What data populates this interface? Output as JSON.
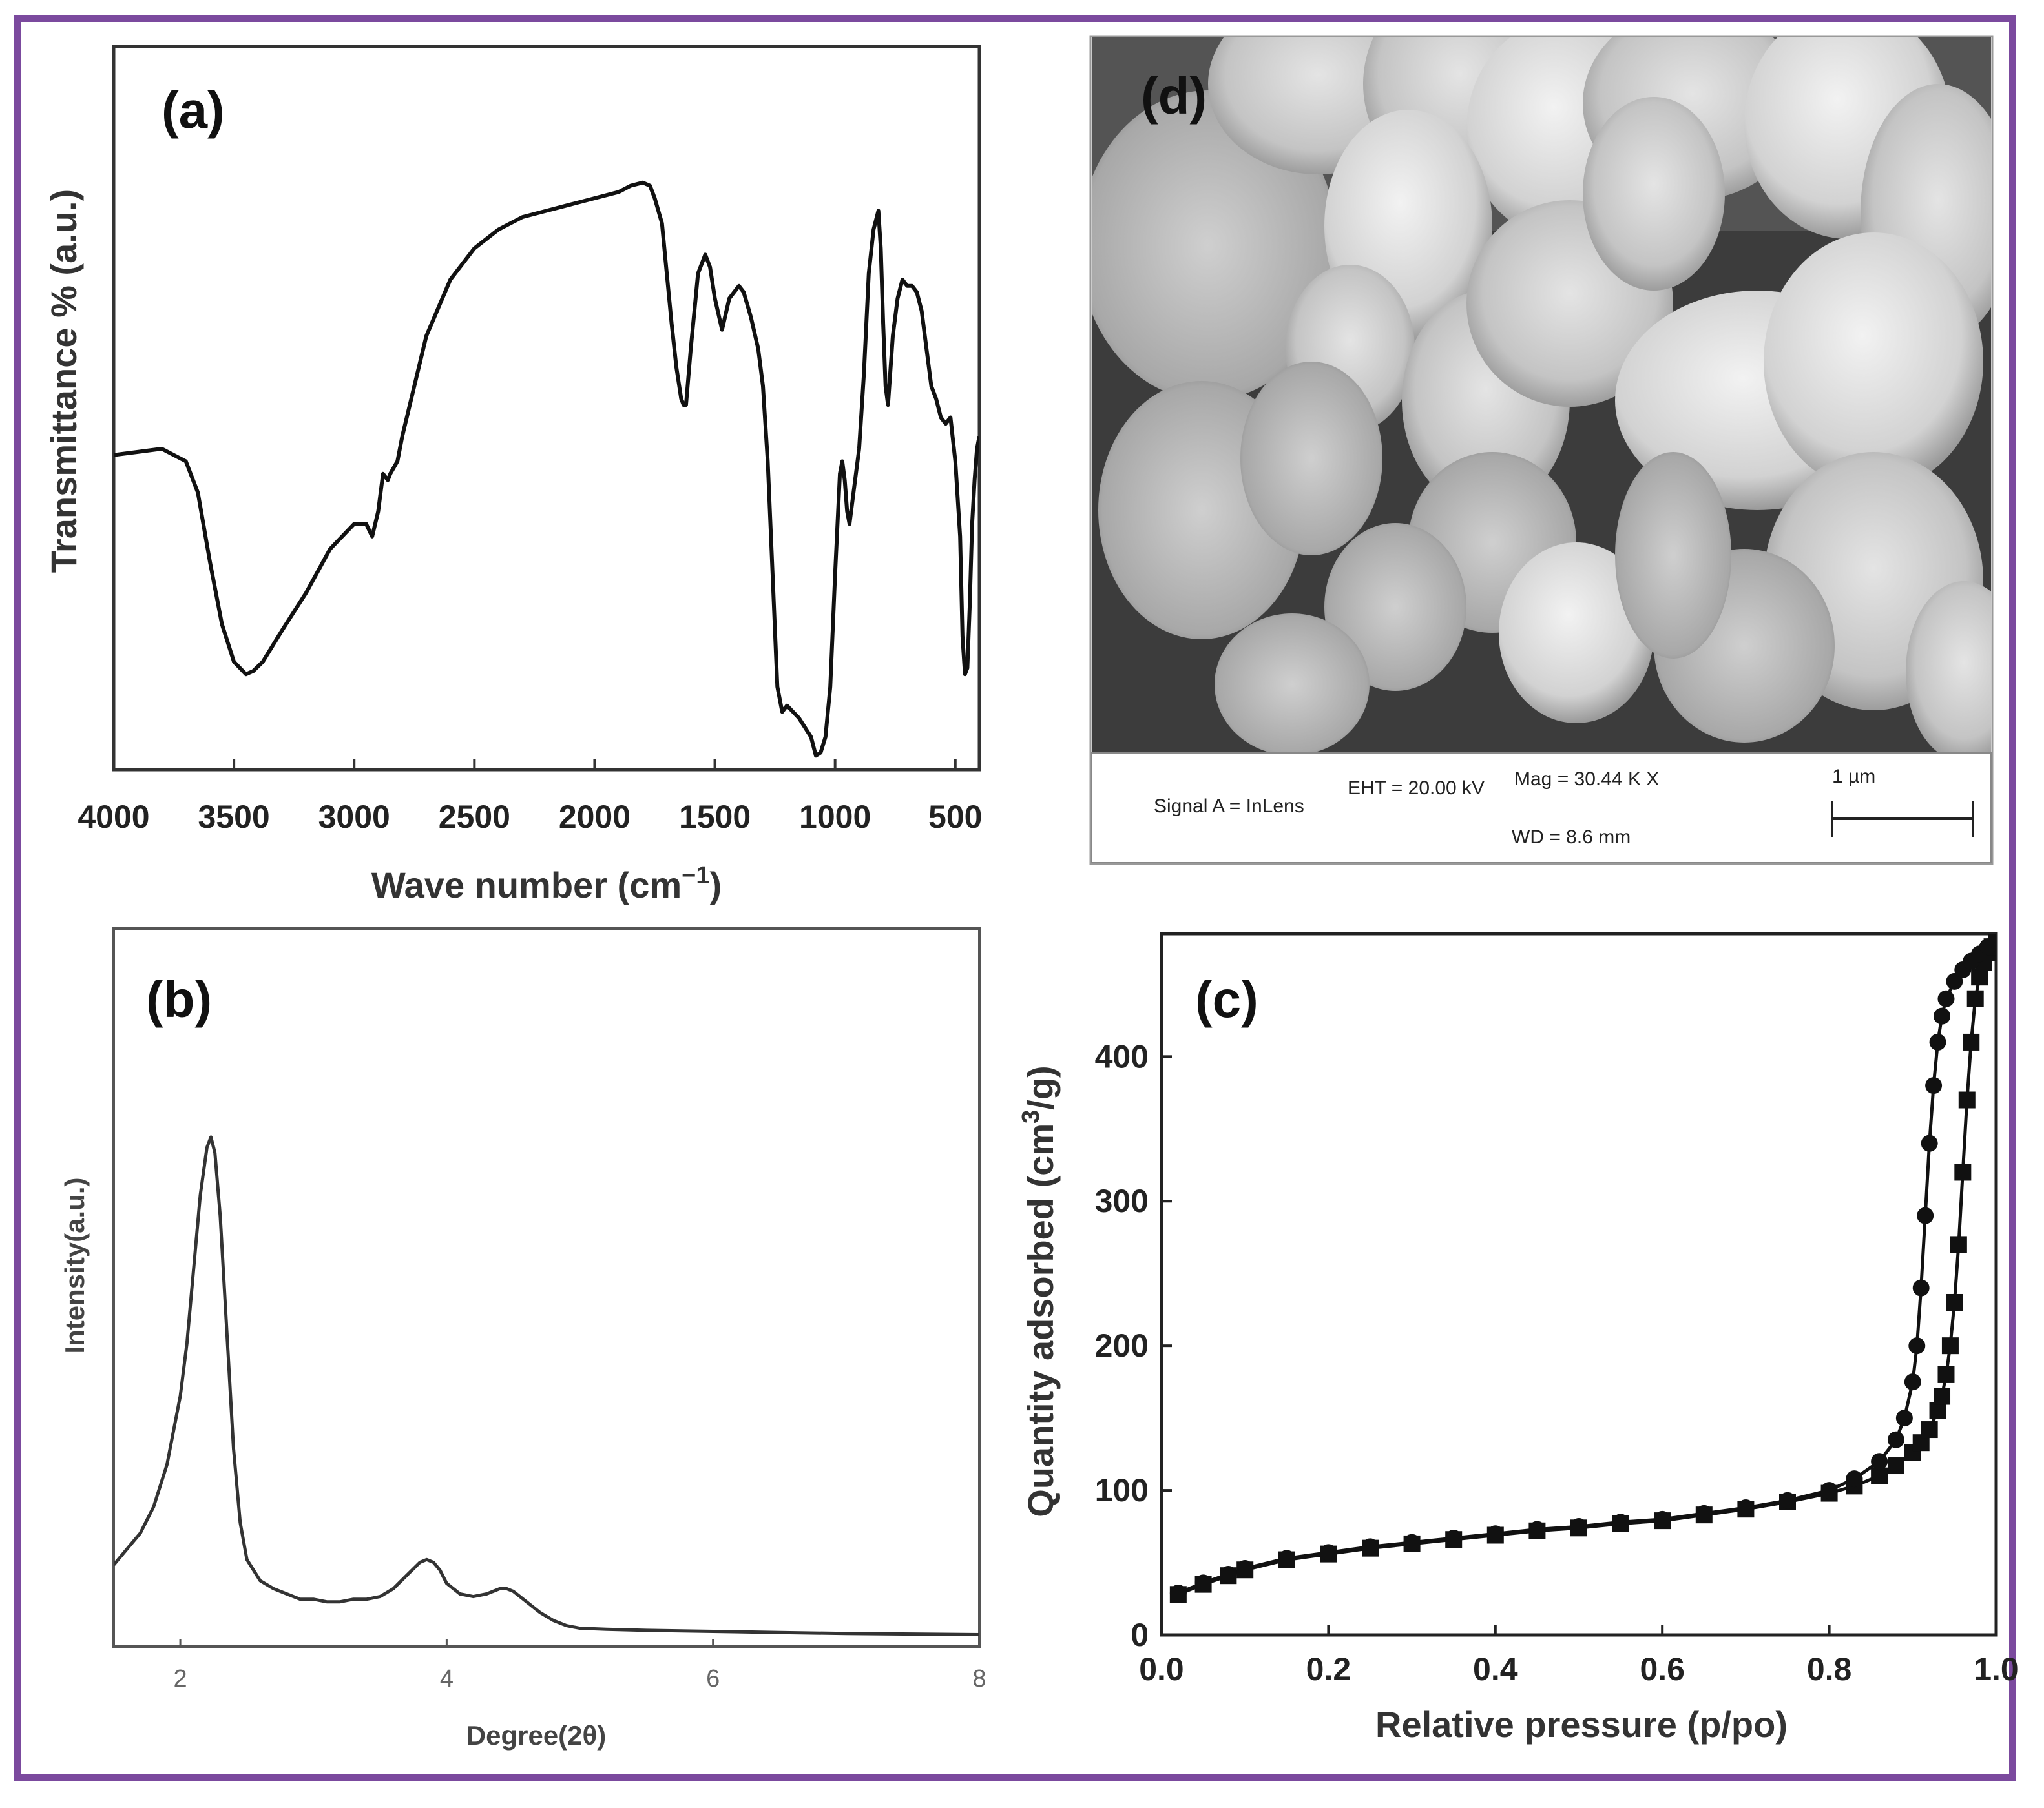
{
  "chart_data": [
    {
      "type": "line",
      "panel": "(a)",
      "xlabel": "Wave number (cm",
      "xlabel_sup": "−1",
      "xlabel_end": ")",
      "ylabel": "Transmittance % (a.u.)",
      "xlim": [
        4000,
        400
      ],
      "x_ticks": [
        "4000",
        "3500",
        "3000",
        "2500",
        "2000",
        "1500",
        "1000",
        "500"
      ],
      "x_tick_values": [
        4000,
        3500,
        3000,
        2500,
        2000,
        1500,
        1000,
        500
      ],
      "ylim": [
        0,
        100
      ],
      "y_ticks": [],
      "grid": false,
      "series": [
        {
          "x": [
            4000,
            3900,
            3800,
            3700,
            3650,
            3600,
            3550,
            3500,
            3450,
            3420,
            3380,
            3300,
            3200,
            3100,
            3000,
            2950,
            2925,
            2900,
            2880,
            2860,
            2850,
            2820,
            2800,
            2700,
            2600,
            2500,
            2400,
            2300,
            2200,
            2100,
            2000,
            1900,
            1850,
            1800,
            1770,
            1750,
            1720,
            1700,
            1680,
            1660,
            1640,
            1630,
            1620,
            1600,
            1570,
            1540,
            1520,
            1500,
            1470,
            1440,
            1420,
            1400,
            1380,
            1350,
            1320,
            1300,
            1280,
            1260,
            1240,
            1220,
            1200,
            1150,
            1100,
            1080,
            1060,
            1040,
            1020,
            1000,
            980,
            970,
            960,
            950,
            940,
            920,
            900,
            880,
            860,
            840,
            820,
            810,
            800,
            790,
            780,
            760,
            740,
            720,
            700,
            680,
            660,
            640,
            620,
            600,
            580,
            560,
            540,
            520,
            500,
            480,
            470,
            460,
            450,
            440,
            430,
            420,
            410,
            400
          ],
          "y": [
            49,
            49.5,
            50,
            48,
            43,
            32,
            22,
            16,
            14,
            14.5,
            16,
            21,
            27,
            34,
            38,
            38,
            36,
            40,
            46,
            45,
            46,
            48,
            52,
            68,
            77,
            82,
            85,
            87,
            88,
            89,
            90,
            91,
            92,
            92.5,
            92,
            90,
            86,
            78,
            70,
            63,
            58,
            57,
            57,
            66,
            78,
            81,
            79,
            74,
            69,
            74,
            75,
            76,
            75,
            71,
            66,
            60,
            48,
            30,
            12,
            8,
            9,
            7,
            4,
            1,
            1.5,
            4,
            12,
            30,
            46,
            48,
            45,
            40,
            38,
            44,
            50,
            62,
            78,
            85,
            88,
            82,
            70,
            60,
            57,
            68,
            74,
            77,
            76,
            76,
            75,
            72,
            66,
            60,
            58,
            55,
            54,
            55,
            48,
            36,
            20,
            14,
            15,
            25,
            38,
            45,
            50,
            52
          ]
        }
      ]
    },
    {
      "type": "line",
      "panel": "(b)",
      "xlabel": "Degree(2θ)",
      "ylabel": "Intensity(a.u.)",
      "xlim": [
        1.5,
        8
      ],
      "x_ticks": [
        "2",
        "4",
        "6",
        "8"
      ],
      "x_tick_values": [
        2,
        4,
        6,
        8
      ],
      "ylim": [
        0,
        100
      ],
      "grid": false,
      "series": [
        {
          "x": [
            1.5,
            1.6,
            1.7,
            1.8,
            1.9,
            2.0,
            2.05,
            2.1,
            2.15,
            2.2,
            2.23,
            2.26,
            2.3,
            2.35,
            2.4,
            2.45,
            2.5,
            2.6,
            2.7,
            2.8,
            2.9,
            3.0,
            3.1,
            3.2,
            3.3,
            3.4,
            3.5,
            3.6,
            3.7,
            3.8,
            3.85,
            3.9,
            3.95,
            4.0,
            4.1,
            4.2,
            4.3,
            4.4,
            4.45,
            4.5,
            4.55,
            4.6,
            4.7,
            4.8,
            4.9,
            5.0,
            5.2,
            5.5,
            6.0,
            6.5,
            7.0,
            7.5,
            8.0
          ],
          "y": [
            14,
            17,
            20,
            25,
            33,
            46,
            56,
            70,
            84,
            93,
            95,
            92,
            80,
            58,
            36,
            22,
            15,
            11,
            9.5,
            8.5,
            7.5,
            7.5,
            7,
            7,
            7.5,
            7.5,
            8,
            9.5,
            12,
            14.5,
            15,
            14.5,
            13,
            10.5,
            8.5,
            8,
            8.5,
            9.5,
            9.5,
            9,
            8,
            7,
            5,
            3.5,
            2.5,
            2,
            1.8,
            1.6,
            1.4,
            1.2,
            1.0,
            0.9,
            0.8
          ]
        }
      ]
    },
    {
      "type": "line",
      "panel": "(c)",
      "xlabel": "Relative pressure (p/po)",
      "ylabel": "Quantity adsorbed (cm",
      "ylabel_sup": "3",
      "ylabel_end": "/g)",
      "xlim": [
        0,
        1.0
      ],
      "x_ticks": [
        "0.0",
        "0.2",
        "0.4",
        "0.6",
        "0.8",
        "1.0"
      ],
      "x_tick_values": [
        0.0,
        0.2,
        0.4,
        0.6,
        0.8,
        1.0
      ],
      "ylim": [
        0,
        485
      ],
      "y_ticks": [
        "0",
        "100",
        "200",
        "300",
        "400"
      ],
      "y_tick_values": [
        0,
        100,
        200,
        300,
        400
      ],
      "grid": false,
      "series": [
        {
          "marker": "square",
          "x": [
            0.02,
            0.05,
            0.08,
            0.1,
            0.15,
            0.2,
            0.25,
            0.3,
            0.35,
            0.4,
            0.45,
            0.5,
            0.55,
            0.6,
            0.65,
            0.7,
            0.75,
            0.8,
            0.83,
            0.86,
            0.88,
            0.9,
            0.91,
            0.92,
            0.93,
            0.935,
            0.94,
            0.945,
            0.95,
            0.955,
            0.96,
            0.965,
            0.97,
            0.975,
            0.98,
            0.985,
            0.99,
            0.995,
            1.0
          ],
          "y": [
            28,
            35,
            41,
            45,
            52,
            56,
            60,
            63,
            66,
            69,
            72,
            74,
            77,
            79,
            83,
            87,
            92,
            98,
            103,
            110,
            117,
            126,
            133,
            142,
            155,
            165,
            180,
            200,
            230,
            270,
            320,
            370,
            410,
            440,
            455,
            465,
            472,
            476,
            480
          ]
        },
        {
          "marker": "circle",
          "x": [
            0.02,
            0.05,
            0.08,
            0.1,
            0.15,
            0.2,
            0.25,
            0.3,
            0.35,
            0.4,
            0.45,
            0.5,
            0.55,
            0.6,
            0.65,
            0.7,
            0.75,
            0.8,
            0.83,
            0.86,
            0.88,
            0.89,
            0.9,
            0.905,
            0.91,
            0.915,
            0.92,
            0.925,
            0.93,
            0.935,
            0.94,
            0.95,
            0.96,
            0.97,
            0.98,
            0.99,
            1.0
          ],
          "y": [
            29,
            36,
            42,
            46,
            53,
            57,
            61,
            64,
            67,
            70,
            73,
            75,
            78,
            80,
            84,
            88,
            93,
            100,
            108,
            120,
            135,
            150,
            175,
            200,
            240,
            290,
            340,
            380,
            410,
            428,
            440,
            452,
            460,
            466,
            471,
            476,
            480
          ]
        }
      ]
    }
  ],
  "panels": {
    "a": {
      "label": "(a)"
    },
    "b": {
      "label": "(b)"
    },
    "c": {
      "label": "(c)"
    },
    "d": {
      "label": "(d)"
    }
  },
  "sem": {
    "signal": "Signal A = InLens",
    "eht": "EHT = 20.00 kV",
    "mag": "Mag =  30.44 K X",
    "wd": "WD =  8.6 mm",
    "scale_label": "1 µm"
  },
  "colors": {
    "frame": "#7b4a9e",
    "line": "#111111"
  }
}
